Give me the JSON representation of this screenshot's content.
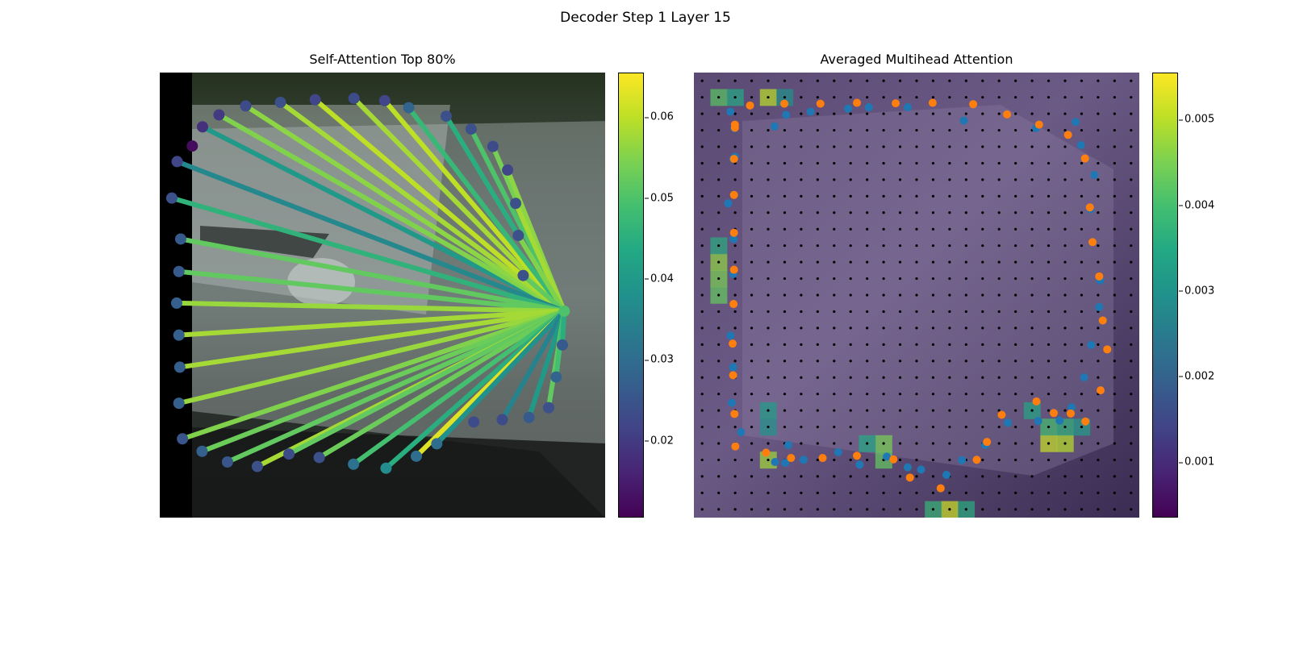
{
  "figure": {
    "suptitle": "Decoder Step 1 Layer 15"
  },
  "chart_data": [
    {
      "type": "network",
      "title": "Self-Attention Top 80%",
      "colorbar": {
        "ticks": [
          "0.02",
          "0.03",
          "0.04",
          "0.05",
          "0.06"
        ],
        "range": [
          0.0105,
          0.0655
        ]
      },
      "query_node": {
        "x": 0.908,
        "y": 0.536,
        "weight": 0.05
      },
      "nodes": [
        {
          "x": 0.073,
          "y": 0.165,
          "weight": 0.012
        },
        {
          "x": 0.096,
          "y": 0.122,
          "weight": 0.018
        },
        {
          "x": 0.133,
          "y": 0.095,
          "weight": 0.02
        },
        {
          "x": 0.193,
          "y": 0.075,
          "weight": 0.023
        },
        {
          "x": 0.271,
          "y": 0.067,
          "weight": 0.024
        },
        {
          "x": 0.349,
          "y": 0.061,
          "weight": 0.022
        },
        {
          "x": 0.436,
          "y": 0.058,
          "weight": 0.023
        },
        {
          "x": 0.505,
          "y": 0.063,
          "weight": 0.022
        },
        {
          "x": 0.559,
          "y": 0.079,
          "weight": 0.028
        },
        {
          "x": 0.643,
          "y": 0.098,
          "weight": 0.024
        },
        {
          "x": 0.699,
          "y": 0.127,
          "weight": 0.024
        },
        {
          "x": 0.748,
          "y": 0.166,
          "weight": 0.023
        },
        {
          "x": 0.781,
          "y": 0.219,
          "weight": 0.022
        },
        {
          "x": 0.799,
          "y": 0.294,
          "weight": 0.024
        },
        {
          "x": 0.805,
          "y": 0.366,
          "weight": 0.024
        },
        {
          "x": 0.816,
          "y": 0.456,
          "weight": 0.024
        },
        {
          "x": 0.039,
          "y": 0.2,
          "weight": 0.022
        },
        {
          "x": 0.027,
          "y": 0.282,
          "weight": 0.024
        },
        {
          "x": 0.047,
          "y": 0.374,
          "weight": 0.026
        },
        {
          "x": 0.043,
          "y": 0.447,
          "weight": 0.026
        },
        {
          "x": 0.038,
          "y": 0.518,
          "weight": 0.027
        },
        {
          "x": 0.043,
          "y": 0.59,
          "weight": 0.027
        },
        {
          "x": 0.045,
          "y": 0.662,
          "weight": 0.027
        },
        {
          "x": 0.043,
          "y": 0.743,
          "weight": 0.027
        },
        {
          "x": 0.051,
          "y": 0.823,
          "weight": 0.025
        },
        {
          "x": 0.095,
          "y": 0.851,
          "weight": 0.027
        },
        {
          "x": 0.152,
          "y": 0.875,
          "weight": 0.025
        },
        {
          "x": 0.219,
          "y": 0.885,
          "weight": 0.024
        },
        {
          "x": 0.29,
          "y": 0.857,
          "weight": 0.023
        },
        {
          "x": 0.358,
          "y": 0.865,
          "weight": 0.024
        },
        {
          "x": 0.435,
          "y": 0.88,
          "weight": 0.031
        },
        {
          "x": 0.508,
          "y": 0.889,
          "weight": 0.037
        },
        {
          "x": 0.576,
          "y": 0.862,
          "weight": 0.03
        },
        {
          "x": 0.622,
          "y": 0.834,
          "weight": 0.03
        },
        {
          "x": 0.705,
          "y": 0.785,
          "weight": 0.023
        },
        {
          "x": 0.769,
          "y": 0.78,
          "weight": 0.023
        },
        {
          "x": 0.829,
          "y": 0.775,
          "weight": 0.026
        },
        {
          "x": 0.873,
          "y": 0.753,
          "weight": 0.024
        },
        {
          "x": 0.89,
          "y": 0.684,
          "weight": 0.028
        },
        {
          "x": 0.904,
          "y": 0.612,
          "weight": 0.026
        }
      ],
      "edges": [
        {
          "to": 1,
          "weight": 0.04
        },
        {
          "to": 2,
          "weight": 0.055
        },
        {
          "to": 3,
          "weight": 0.056
        },
        {
          "to": 4,
          "weight": 0.058
        },
        {
          "to": 5,
          "weight": 0.06
        },
        {
          "to": 6,
          "weight": 0.058
        },
        {
          "to": 7,
          "weight": 0.06
        },
        {
          "to": 8,
          "weight": 0.047
        },
        {
          "to": 9,
          "weight": 0.045
        },
        {
          "to": 10,
          "weight": 0.05
        },
        {
          "to": 11,
          "weight": 0.054
        },
        {
          "to": 12,
          "weight": 0.056
        },
        {
          "to": 13,
          "weight": 0.058
        },
        {
          "to": 14,
          "weight": 0.055
        },
        {
          "to": 15,
          "weight": 0.052
        },
        {
          "to": 16,
          "weight": 0.036
        },
        {
          "to": 17,
          "weight": 0.046
        },
        {
          "to": 18,
          "weight": 0.052
        },
        {
          "to": 19,
          "weight": 0.052
        },
        {
          "to": 20,
          "weight": 0.057
        },
        {
          "to": 21,
          "weight": 0.058
        },
        {
          "to": 22,
          "weight": 0.058
        },
        {
          "to": 23,
          "weight": 0.057
        },
        {
          "to": 24,
          "weight": 0.055
        },
        {
          "to": 25,
          "weight": 0.053
        },
        {
          "to": 26,
          "weight": 0.052
        },
        {
          "to": 27,
          "weight": 0.058
        },
        {
          "to": 28,
          "weight": 0.052
        },
        {
          "to": 29,
          "weight": 0.053
        },
        {
          "to": 30,
          "weight": 0.049
        },
        {
          "to": 31,
          "weight": 0.045
        },
        {
          "to": 32,
          "weight": 0.063
        },
        {
          "to": 33,
          "weight": 0.038
        },
        {
          "to": 35,
          "weight": 0.035
        },
        {
          "to": 36,
          "weight": 0.04
        },
        {
          "to": 37,
          "weight": 0.052
        },
        {
          "to": 38,
          "weight": 0.049
        },
        {
          "to": 39,
          "weight": 0.045
        }
      ]
    },
    {
      "type": "heatmap",
      "title": "Averaged Multihead Attention",
      "colorbar": {
        "ticks": [
          "0.001",
          "0.002",
          "0.003",
          "0.004",
          "0.005"
        ],
        "range": [
          0.00035,
          0.00555
        ]
      },
      "grid": {
        "rows": 27,
        "cols": 27
      },
      "hot_cells": [
        {
          "r": 1,
          "c": 4,
          "v": 0.005
        },
        {
          "r": 1,
          "c": 1,
          "v": 0.0042
        },
        {
          "r": 1,
          "c": 2,
          "v": 0.0035
        },
        {
          "r": 1,
          "c": 5,
          "v": 0.003
        },
        {
          "r": 11,
          "c": 1,
          "v": 0.0047
        },
        {
          "r": 12,
          "c": 1,
          "v": 0.0045
        },
        {
          "r": 13,
          "c": 1,
          "v": 0.0043
        },
        {
          "r": 10,
          "c": 1,
          "v": 0.0036
        },
        {
          "r": 23,
          "c": 4,
          "v": 0.0048
        },
        {
          "r": 22,
          "c": 11,
          "v": 0.0045
        },
        {
          "r": 23,
          "c": 11,
          "v": 0.0043
        },
        {
          "r": 22,
          "c": 10,
          "v": 0.0035
        },
        {
          "r": 22,
          "c": 21,
          "v": 0.0051
        },
        {
          "r": 22,
          "c": 22,
          "v": 0.005
        },
        {
          "r": 21,
          "c": 21,
          "v": 0.004
        },
        {
          "r": 21,
          "c": 22,
          "v": 0.0037
        },
        {
          "r": 26,
          "c": 15,
          "v": 0.0052
        },
        {
          "r": 26,
          "c": 14,
          "v": 0.0038
        },
        {
          "r": 26,
          "c": 16,
          "v": 0.0036
        },
        {
          "r": 20,
          "c": 20,
          "v": 0.0034
        },
        {
          "r": 21,
          "c": 23,
          "v": 0.0032
        },
        {
          "r": 20,
          "c": 4,
          "v": 0.0032
        },
        {
          "r": 21,
          "c": 4,
          "v": 0.003
        }
      ],
      "series": [
        {
          "color": "#1f77b4",
          "points": [
            [
              0.082,
              0.088
            ],
            [
              0.091,
              0.125
            ],
            [
              0.092,
              0.189
            ],
            [
              0.077,
              0.294
            ],
            [
              0.089,
              0.374
            ],
            [
              0.088,
              0.453
            ],
            [
              0.082,
              0.591
            ],
            [
              0.088,
              0.662
            ],
            [
              0.085,
              0.742
            ],
            [
              0.106,
              0.808
            ],
            [
              0.182,
              0.875
            ],
            [
              0.205,
              0.877
            ],
            [
              0.212,
              0.837
            ],
            [
              0.246,
              0.87
            ],
            [
              0.324,
              0.853
            ],
            [
              0.372,
              0.881
            ],
            [
              0.433,
              0.863
            ],
            [
              0.48,
              0.887
            ],
            [
              0.51,
              0.892
            ],
            [
              0.567,
              0.904
            ],
            [
              0.602,
              0.871
            ],
            [
              0.654,
              0.837
            ],
            [
              0.705,
              0.787
            ],
            [
              0.773,
              0.783
            ],
            [
              0.821,
              0.782
            ],
            [
              0.848,
              0.752
            ],
            [
              0.876,
              0.685
            ],
            [
              0.892,
              0.612
            ],
            [
              0.91,
              0.527
            ],
            [
              0.912,
              0.467
            ],
            [
              0.895,
              0.381
            ],
            [
              0.89,
              0.307
            ],
            [
              0.899,
              0.23
            ],
            [
              0.869,
              0.163
            ],
            [
              0.857,
              0.111
            ],
            [
              0.768,
              0.125
            ],
            [
              0.606,
              0.108
            ],
            [
              0.48,
              0.078
            ],
            [
              0.393,
              0.078
            ],
            [
              0.346,
              0.081
            ],
            [
              0.262,
              0.088
            ],
            [
              0.207,
              0.095
            ],
            [
              0.181,
              0.121
            ],
            [
              0.088,
              0.194
            ]
          ]
        },
        {
          "color": "#ff7f0e",
          "points": [
            [
              0.126,
              0.074
            ],
            [
              0.203,
              0.07
            ],
            [
              0.284,
              0.07
            ],
            [
              0.366,
              0.068
            ],
            [
              0.453,
              0.069
            ],
            [
              0.536,
              0.068
            ],
            [
              0.627,
              0.071
            ],
            [
              0.703,
              0.094
            ],
            [
              0.775,
              0.117
            ],
            [
              0.84,
              0.14
            ],
            [
              0.878,
              0.193
            ],
            [
              0.889,
              0.303
            ],
            [
              0.895,
              0.381
            ],
            [
              0.91,
              0.458
            ],
            [
              0.918,
              0.557
            ],
            [
              0.928,
              0.622
            ],
            [
              0.913,
              0.714
            ],
            [
              0.879,
              0.784
            ],
            [
              0.846,
              0.766
            ],
            [
              0.808,
              0.765
            ],
            [
              0.769,
              0.739
            ],
            [
              0.691,
              0.769
            ],
            [
              0.658,
              0.83
            ],
            [
              0.635,
              0.87
            ],
            [
              0.554,
              0.934
            ],
            [
              0.485,
              0.91
            ],
            [
              0.448,
              0.869
            ],
            [
              0.366,
              0.861
            ],
            [
              0.289,
              0.866
            ],
            [
              0.218,
              0.866
            ],
            [
              0.162,
              0.854
            ],
            [
              0.093,
              0.84
            ],
            [
              0.091,
              0.767
            ],
            [
              0.088,
              0.68
            ],
            [
              0.087,
              0.609
            ],
            [
              0.089,
              0.52
            ],
            [
              0.09,
              0.443
            ],
            [
              0.09,
              0.36
            ],
            [
              0.09,
              0.275
            ],
            [
              0.09,
              0.194
            ],
            [
              0.092,
              0.124
            ],
            [
              0.092,
              0.117
            ]
          ]
        }
      ]
    }
  ]
}
